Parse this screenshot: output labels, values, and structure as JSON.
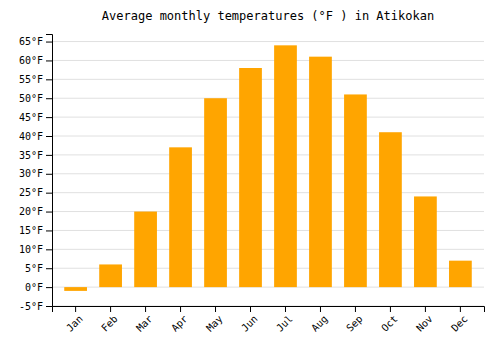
{
  "chart_data": {
    "type": "bar",
    "title": "Average monthly temperatures (°F ) in Atikokan",
    "categories": [
      "Jan",
      "Feb",
      "Mar",
      "Apr",
      "May",
      "Jun",
      "Jul",
      "Aug",
      "Sep",
      "Oct",
      "Nov",
      "Dec"
    ],
    "values": [
      -1,
      6,
      20,
      37,
      50,
      58,
      64,
      61,
      51,
      41,
      24,
      7
    ],
    "color": "#FFA500",
    "ylim": [
      -5,
      67
    ],
    "yticks": [
      {
        "value": -5,
        "label": "-5°F"
      },
      {
        "value": 0,
        "label": "0°F"
      },
      {
        "value": 5,
        "label": "5°F"
      },
      {
        "value": 10,
        "label": "10°F"
      },
      {
        "value": 15,
        "label": "15°F"
      },
      {
        "value": 20,
        "label": "20°F"
      },
      {
        "value": 25,
        "label": "25°F"
      },
      {
        "value": 30,
        "label": "30°F"
      },
      {
        "value": 35,
        "label": "35°F"
      },
      {
        "value": 40,
        "label": "40°F"
      },
      {
        "value": 45,
        "label": "45°F"
      },
      {
        "value": 50,
        "label": "50°F"
      },
      {
        "value": 55,
        "label": "55°F"
      },
      {
        "value": 60,
        "label": "60°F"
      },
      {
        "value": 65,
        "label": "65°F"
      }
    ],
    "grid": true
  }
}
